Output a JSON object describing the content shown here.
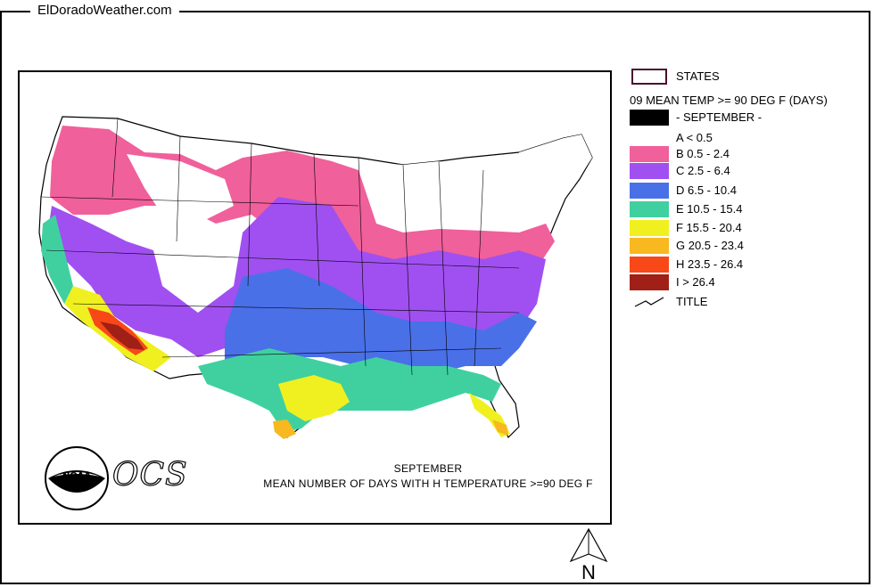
{
  "site": {
    "title": "ElDoradoWeather.com"
  },
  "map": {
    "caption_line1": "SEPTEMBER",
    "caption_line2": "MEAN NUMBER OF DAYS WITH H TEMPERATURE >=90 DEG F",
    "logo_text": "NOAA",
    "agency_text": "OCS",
    "north_label": "N"
  },
  "legend": {
    "states_label": "STATES",
    "layer_title": "09 MEAN TEMP >= 90 DEG F (DAYS)",
    "month_label": "- SEPTEMBER -",
    "classes": [
      {
        "label": "A < 0.5",
        "color": "#ffffff"
      },
      {
        "label": "B 0.5 - 2.4",
        "color": "#f0609a"
      },
      {
        "label": "C 2.5 - 6.4",
        "color": "#a050f0"
      },
      {
        "label": "D 6.5 - 10.4",
        "color": "#4a70e8"
      },
      {
        "label": "E 10.5 - 15.4",
        "color": "#40d0a0"
      },
      {
        "label": "F 15.5 - 20.4",
        "color": "#f0f020"
      },
      {
        "label": "G 20.5 - 23.4",
        "color": "#f8b820"
      },
      {
        "label": "H 23.5 - 26.4",
        "color": "#f84818"
      },
      {
        "label": "I > 26.4",
        "color": "#a02018"
      }
    ],
    "title_label": "TITLE"
  }
}
